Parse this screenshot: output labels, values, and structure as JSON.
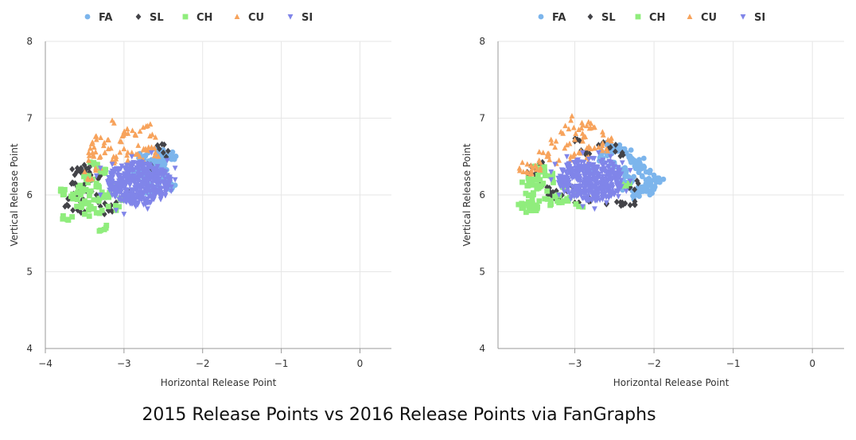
{
  "caption": "2015 Release Points vs 2016 Release Points via FanGraphs",
  "chart_data": [
    {
      "type": "scatter",
      "title": "",
      "xlabel": "Horizontal Release Point",
      "ylabel": "Vertical Release Point",
      "xlim": [
        -4,
        0.4
      ],
      "ylim": [
        4,
        8
      ],
      "x_ticks": [
        "−4",
        "−3",
        "−2",
        "−1",
        "0"
      ],
      "y_ticks": [
        "4",
        "5",
        "6",
        "7",
        "8"
      ],
      "grid": true,
      "legend_position": "top",
      "series": [
        {
          "name": "FA",
          "color": "#7cb5ec",
          "marker": "circle",
          "points": [
            [
              -2.85,
              6.3
            ],
            [
              -2.8,
              6.25
            ],
            [
              -2.75,
              6.35
            ],
            [
              -2.6,
              6.4
            ],
            [
              -2.55,
              6.45
            ],
            [
              -2.5,
              6.35
            ],
            [
              -2.45,
              6.5
            ],
            [
              -2.4,
              6.52
            ],
            [
              -2.45,
              6.2
            ],
            [
              -2.6,
              6.1
            ],
            [
              -2.42,
              6.1
            ],
            [
              -2.7,
              6.05
            ],
            [
              -2.9,
              6.0
            ],
            [
              -3.0,
              6.15
            ],
            [
              -2.65,
              6.3
            ],
            [
              -2.55,
              6.55
            ],
            [
              -2.75,
              6.5
            ]
          ]
        },
        {
          "name": "SL",
          "color": "#434348",
          "marker": "diamond",
          "points": [
            [
              -3.75,
              5.85
            ],
            [
              -3.7,
              5.95
            ],
            [
              -3.65,
              5.8
            ],
            [
              -3.6,
              6.0
            ],
            [
              -3.62,
              6.15
            ],
            [
              -3.55,
              6.1
            ],
            [
              -3.5,
              6.3
            ],
            [
              -3.45,
              6.35
            ],
            [
              -3.55,
              5.9
            ],
            [
              -3.4,
              6.2
            ],
            [
              -3.35,
              6.0
            ],
            [
              -3.3,
              5.85
            ],
            [
              -3.2,
              5.8
            ],
            [
              -3.1,
              5.9
            ],
            [
              -3.0,
              5.95
            ],
            [
              -2.9,
              6.0
            ],
            [
              -2.7,
              6.4
            ],
            [
              -2.55,
              6.6
            ],
            [
              -2.5,
              6.55
            ],
            [
              -3.6,
              6.3
            ],
            [
              -3.5,
              5.78
            ],
            [
              -3.3,
              6.25
            ]
          ]
        },
        {
          "name": "CH",
          "color": "#90ed7d",
          "marker": "square",
          "points": [
            [
              -3.8,
              6.05
            ],
            [
              -3.72,
              5.68
            ],
            [
              -3.65,
              5.95
            ],
            [
              -3.6,
              5.85
            ],
            [
              -3.58,
              6.1
            ],
            [
              -3.55,
              6.0
            ],
            [
              -3.5,
              5.75
            ],
            [
              -3.48,
              6.2
            ],
            [
              -3.45,
              5.9
            ],
            [
              -3.42,
              6.05
            ],
            [
              -3.38,
              5.82
            ],
            [
              -3.35,
              6.15
            ],
            [
              -3.32,
              5.92
            ],
            [
              -3.3,
              6.3
            ],
            [
              -3.28,
              5.8
            ],
            [
              -3.25,
              6.0
            ],
            [
              -3.25,
              5.55
            ],
            [
              -3.2,
              5.85
            ],
            [
              -3.15,
              6.1
            ],
            [
              -3.1,
              5.8
            ],
            [
              -3.05,
              5.95
            ],
            [
              -3.45,
              6.25
            ],
            [
              -3.38,
              6.4
            ]
          ]
        },
        {
          "name": "CU",
          "color": "#f7a35c",
          "marker": "triangle",
          "points": [
            [
              -3.15,
              6.97
            ],
            [
              -2.95,
              6.8
            ],
            [
              -2.7,
              6.9
            ],
            [
              -2.6,
              6.75
            ],
            [
              -3.35,
              6.72
            ],
            [
              -3.25,
              6.68
            ],
            [
              -3.05,
              6.7
            ],
            [
              -2.85,
              6.78
            ],
            [
              -2.75,
              6.6
            ],
            [
              -3.45,
              6.45
            ],
            [
              -3.4,
              6.55
            ],
            [
              -3.3,
              6.5
            ],
            [
              -3.2,
              6.6
            ],
            [
              -3.1,
              6.5
            ],
            [
              -3.0,
              6.6
            ],
            [
              -2.9,
              6.55
            ],
            [
              -2.8,
              6.5
            ],
            [
              -2.6,
              6.55
            ],
            [
              -3.5,
              6.3
            ],
            [
              -3.45,
              6.2
            ],
            [
              -3.3,
              6.35
            ],
            [
              -3.15,
              6.45
            ],
            [
              -2.95,
              6.45
            ],
            [
              -3.38,
              6.62
            ],
            [
              -3.0,
              6.82
            ],
            [
              -2.65,
              6.62
            ]
          ]
        },
        {
          "name": "SI",
          "color": "#8085e9",
          "marker": "triangle-down",
          "points": [
            [
              -3.3,
              6.0
            ],
            [
              -3.1,
              5.8
            ],
            [
              -3.0,
              5.75
            ],
            [
              -2.85,
              5.85
            ],
            [
              -2.7,
              5.95
            ],
            [
              -2.55,
              6.05
            ],
            [
              -2.45,
              6.15
            ],
            [
              -2.35,
              6.2
            ],
            [
              -2.35,
              6.35
            ],
            [
              -2.45,
              6.45
            ],
            [
              -2.65,
              6.55
            ],
            [
              -2.9,
              6.5
            ],
            [
              -3.15,
              6.4
            ],
            [
              -3.3,
              6.35
            ],
            [
              -3.2,
              6.15
            ],
            [
              -2.95,
              6.25
            ],
            [
              -2.75,
              6.3
            ],
            [
              -2.6,
              6.0
            ],
            [
              -2.5,
              6.3
            ],
            [
              -2.85,
              6.1
            ],
            [
              -3.05,
              6.05
            ],
            [
              -2.4,
              6.05
            ],
            [
              -2.7,
              5.82
            ],
            [
              -3.35,
              6.25
            ]
          ]
        }
      ]
    },
    {
      "type": "scatter",
      "title": "",
      "xlabel": "Horizontal Release Point",
      "ylabel": "Vertical Release Point",
      "xlim": [
        -3.97,
        0.4
      ],
      "ylim": [
        4,
        8
      ],
      "x_ticks": [
        "−3",
        "−2",
        "−1",
        "0"
      ],
      "y_ticks": [
        "4",
        "5",
        "6",
        "7",
        "8"
      ],
      "grid": true,
      "legend_position": "top",
      "series": [
        {
          "name": "FA",
          "color": "#7cb5ec",
          "marker": "circle",
          "points": [
            [
              -1.95,
              6.22
            ],
            [
              -2.0,
              6.2
            ],
            [
              -2.05,
              6.05
            ],
            [
              -2.1,
              6.1
            ],
            [
              -2.15,
              6.25
            ],
            [
              -2.2,
              6.35
            ],
            [
              -2.25,
              6.45
            ],
            [
              -2.3,
              6.5
            ],
            [
              -2.35,
              6.55
            ],
            [
              -2.45,
              6.6
            ],
            [
              -2.55,
              6.65
            ],
            [
              -2.6,
              6.55
            ],
            [
              -2.2,
              6.1
            ],
            [
              -2.3,
              6.2
            ],
            [
              -2.4,
              6.3
            ],
            [
              -2.5,
              6.4
            ],
            [
              -2.65,
              6.45
            ],
            [
              -2.8,
              6.35
            ],
            [
              -2.25,
              6.0
            ],
            [
              -2.1,
              6.3
            ],
            [
              -2.05,
              6.15
            ],
            [
              -2.18,
              6.42
            ],
            [
              -2.38,
              6.12
            ]
          ]
        },
        {
          "name": "SL",
          "color": "#434348",
          "marker": "diamond",
          "points": [
            [
              -3.55,
              6.28
            ],
            [
              -3.5,
              6.35
            ],
            [
              -3.45,
              6.2
            ],
            [
              -3.4,
              6.38
            ],
            [
              -3.35,
              6.1
            ],
            [
              -3.3,
              6.0
            ],
            [
              -3.2,
              5.95
            ],
            [
              -3.0,
              5.9
            ],
            [
              -2.8,
              5.92
            ],
            [
              -2.6,
              5.88
            ],
            [
              -2.4,
              5.9
            ],
            [
              -2.25,
              5.88
            ],
            [
              -2.3,
              6.1
            ],
            [
              -2.4,
              6.55
            ],
            [
              -2.55,
              6.62
            ],
            [
              -2.7,
              6.65
            ],
            [
              -3.0,
              6.7
            ],
            [
              -2.2,
              6.15
            ],
            [
              -3.1,
              6.05
            ],
            [
              -2.85,
              6.58
            ]
          ]
        },
        {
          "name": "CH",
          "color": "#90ed7d",
          "marker": "square",
          "points": [
            [
              -3.65,
              5.83
            ],
            [
              -3.62,
              5.88
            ],
            [
              -3.6,
              6.12
            ],
            [
              -3.55,
              6.0
            ],
            [
              -3.52,
              5.85
            ],
            [
              -3.5,
              6.2
            ],
            [
              -3.48,
              6.08
            ],
            [
              -3.45,
              5.92
            ],
            [
              -3.42,
              6.3
            ],
            [
              -3.4,
              6.15
            ],
            [
              -3.38,
              5.95
            ],
            [
              -3.35,
              6.05
            ],
            [
              -3.3,
              5.88
            ],
            [
              -3.28,
              6.22
            ],
            [
              -3.25,
              5.98
            ],
            [
              -3.2,
              5.9
            ],
            [
              -3.15,
              6.1
            ],
            [
              -3.1,
              5.95
            ],
            [
              -3.0,
              6.0
            ],
            [
              -2.95,
              5.85
            ],
            [
              -3.45,
              6.35
            ],
            [
              -2.35,
              6.12
            ],
            [
              -3.58,
              6.18
            ]
          ]
        },
        {
          "name": "CU",
          "color": "#f7a35c",
          "marker": "triangle",
          "points": [
            [
              -3.05,
              6.97
            ],
            [
              -2.95,
              6.85
            ],
            [
              -2.85,
              6.9
            ],
            [
              -2.75,
              6.88
            ],
            [
              -2.65,
              6.82
            ],
            [
              -3.15,
              6.8
            ],
            [
              -3.3,
              6.72
            ],
            [
              -3.25,
              6.62
            ],
            [
              -3.1,
              6.65
            ],
            [
              -3.0,
              6.72
            ],
            [
              -2.9,
              6.7
            ],
            [
              -2.8,
              6.6
            ],
            [
              -2.7,
              6.62
            ],
            [
              -2.6,
              6.6
            ],
            [
              -3.4,
              6.55
            ],
            [
              -3.5,
              6.38
            ],
            [
              -3.55,
              6.32
            ],
            [
              -3.45,
              6.45
            ],
            [
              -3.35,
              6.5
            ],
            [
              -3.2,
              6.45
            ],
            [
              -3.05,
              6.5
            ],
            [
              -2.95,
              6.55
            ],
            [
              -2.55,
              6.72
            ],
            [
              -3.6,
              6.4
            ],
            [
              -2.85,
              6.48
            ],
            [
              -3.12,
              6.9
            ],
            [
              -3.65,
              6.3
            ]
          ]
        },
        {
          "name": "SI",
          "color": "#8085e9",
          "marker": "triangle-down",
          "points": [
            [
              -3.3,
              6.2
            ],
            [
              -3.2,
              6.0
            ],
            [
              -3.05,
              5.95
            ],
            [
              -2.9,
              5.85
            ],
            [
              -2.75,
              5.82
            ],
            [
              -2.6,
              5.9
            ],
            [
              -2.45,
              5.98
            ],
            [
              -2.35,
              6.05
            ],
            [
              -2.3,
              6.18
            ],
            [
              -2.3,
              6.32
            ],
            [
              -2.4,
              6.42
            ],
            [
              -2.55,
              6.5
            ],
            [
              -2.7,
              6.55
            ],
            [
              -2.9,
              6.55
            ],
            [
              -3.1,
              6.5
            ],
            [
              -3.25,
              6.4
            ],
            [
              -3.3,
              6.3
            ],
            [
              -3.05,
              6.3
            ],
            [
              -2.85,
              6.2
            ],
            [
              -2.65,
              6.1
            ],
            [
              -2.5,
              6.25
            ],
            [
              -2.95,
              6.05
            ],
            [
              -3.15,
              6.15
            ],
            [
              -2.45,
              6.35
            ]
          ]
        }
      ]
    }
  ]
}
